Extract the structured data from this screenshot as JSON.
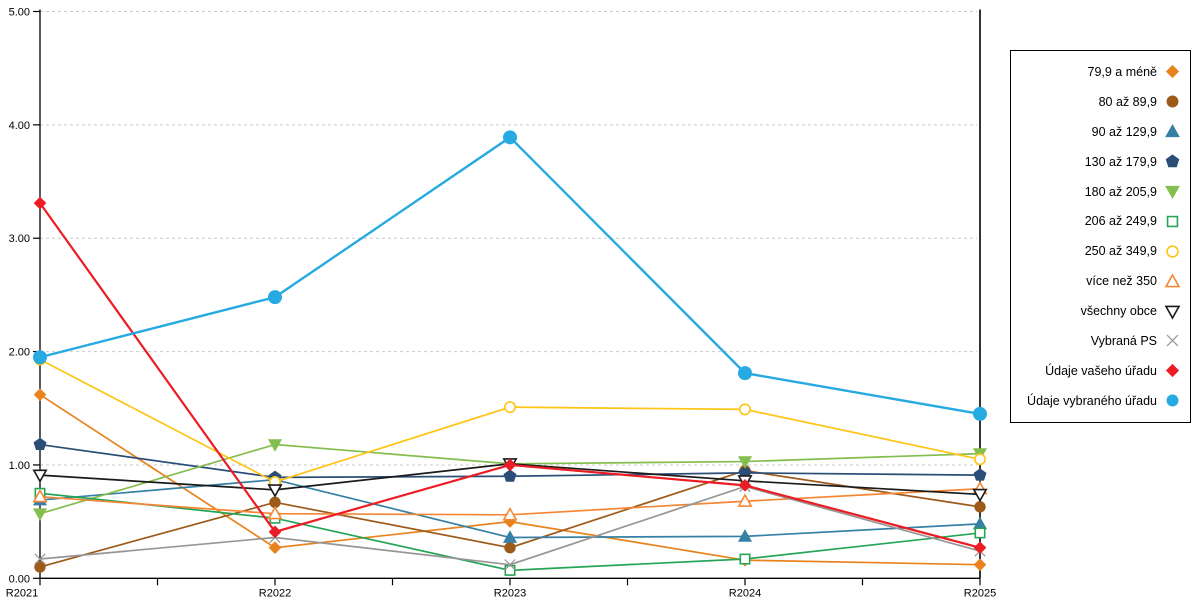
{
  "chart_data": {
    "type": "line",
    "title": "",
    "xlabel": "",
    "ylabel": "",
    "categories": [
      "R2021",
      "R2022",
      "R2023",
      "R2024",
      "R2025"
    ],
    "y_tick_labels": [
      "0.00",
      "1.00",
      "2.00",
      "3.00",
      "4.00",
      "5.00"
    ],
    "ylim": [
      0,
      5
    ],
    "grid": "horizontal-dashed",
    "legend_position": "right",
    "series": [
      {
        "name": "79,9 a méně",
        "color": "#E8821D",
        "marker": "diamond",
        "fill": "filled",
        "values": [
          1.62,
          0.27,
          0.5,
          0.16,
          0.12
        ]
      },
      {
        "name": "80 až 89,9",
        "color": "#9D5B1A",
        "marker": "circle",
        "fill": "filled",
        "values": [
          0.1,
          0.67,
          0.27,
          0.95,
          0.63
        ]
      },
      {
        "name": "90 až 129,9",
        "color": "#3780A5",
        "marker": "triangle-up",
        "fill": "filled",
        "values": [
          0.69,
          0.87,
          0.36,
          0.37,
          0.48
        ]
      },
      {
        "name": "130 až 179,9",
        "color": "#2B4E77",
        "marker": "pentagon",
        "fill": "filled",
        "values": [
          1.18,
          0.89,
          0.9,
          0.93,
          0.91
        ]
      },
      {
        "name": "180 až 205,9",
        "color": "#84BE4E",
        "marker": "triangle-down",
        "fill": "filled",
        "values": [
          0.57,
          1.18,
          1.01,
          1.03,
          1.1
        ]
      },
      {
        "name": "206 až 249,9",
        "color": "#26A557",
        "marker": "square",
        "fill": "open",
        "values": [
          0.75,
          0.53,
          0.07,
          0.17,
          0.4
        ]
      },
      {
        "name": "250 až 349,9",
        "color": "#FFC414",
        "marker": "circle",
        "fill": "open",
        "values": [
          1.93,
          0.85,
          1.51,
          1.49,
          1.05
        ]
      },
      {
        "name": "více než 350",
        "color": "#F58634",
        "marker": "triangle-up",
        "fill": "open",
        "values": [
          0.72,
          0.57,
          0.56,
          0.68,
          0.79
        ]
      },
      {
        "name": "všechny obce",
        "color": "#1A1A1A",
        "marker": "triangle-down",
        "fill": "open",
        "values": [
          0.91,
          0.78,
          1.01,
          0.86,
          0.74
        ]
      },
      {
        "name": "Vybraná PS",
        "color": "#969696",
        "marker": "x",
        "fill": "open",
        "values": [
          0.17,
          0.36,
          0.12,
          0.81,
          0.24
        ]
      },
      {
        "name": "Údaje vašeho úřadu",
        "color": "#EC1C24",
        "marker": "diamond",
        "fill": "filled",
        "values": [
          3.31,
          0.41,
          1.0,
          0.82,
          0.27
        ]
      },
      {
        "name": "Údaje vybraného úřadu",
        "color": "#27AAE1",
        "marker": "circle",
        "fill": "filled",
        "values": [
          1.95,
          2.48,
          3.89,
          1.81,
          1.45
        ]
      }
    ]
  },
  "colors": {
    "background": "#FFFFFF",
    "grid": "#C9C9C9",
    "axis": "#000000",
    "legend_border": "#000000"
  }
}
